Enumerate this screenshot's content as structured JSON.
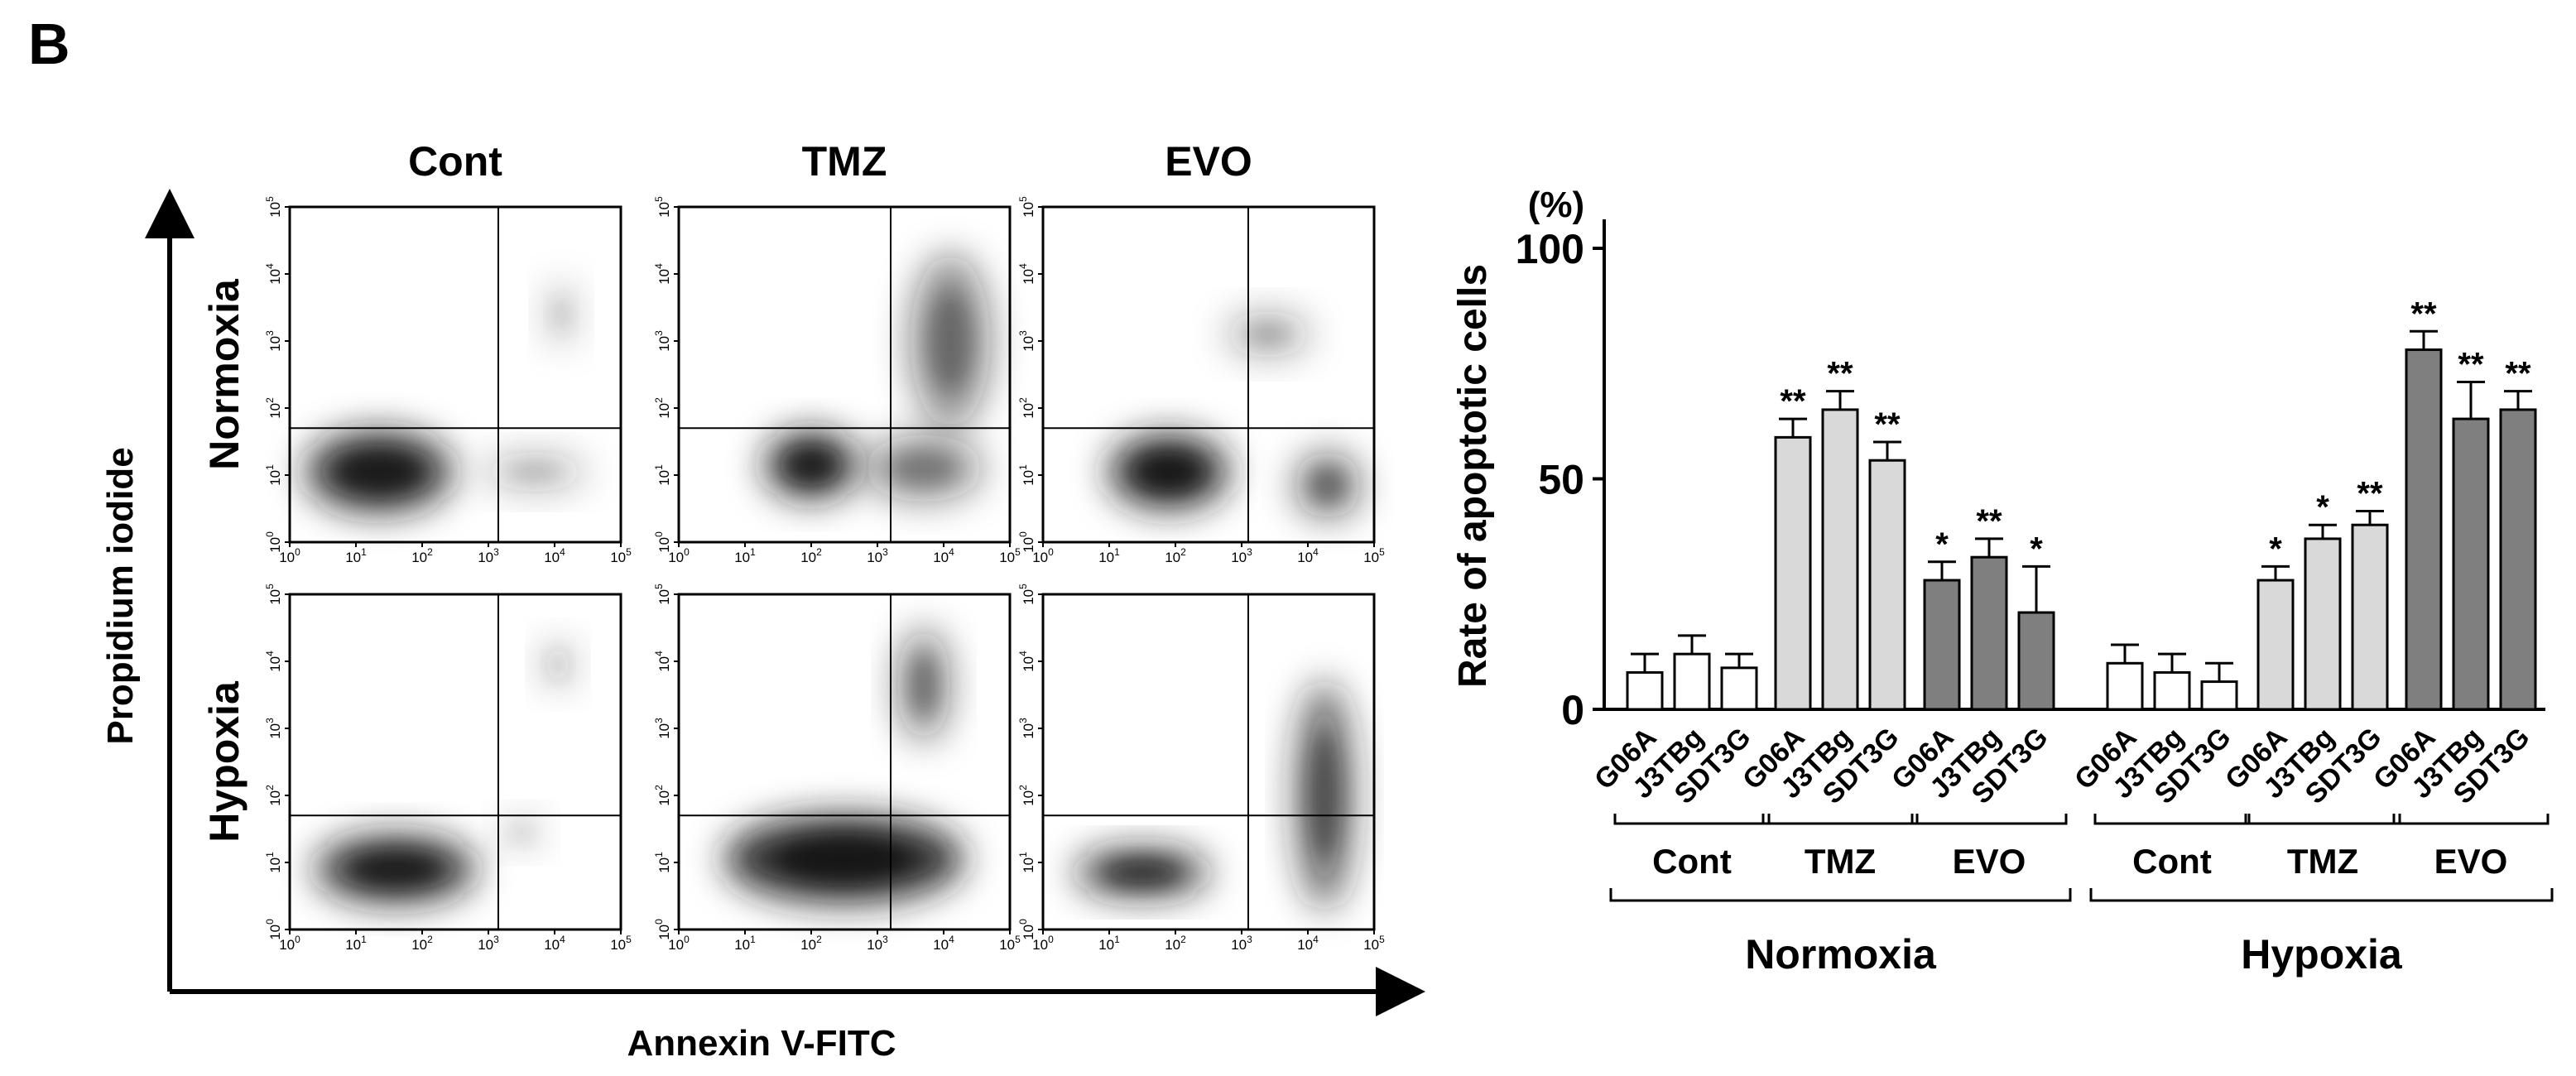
{
  "panel_label": "B",
  "flow": {
    "columns": [
      "Cont",
      "TMZ",
      "EVO"
    ],
    "rows": [
      "Normoxia",
      "Hypoxia"
    ],
    "xlabel": "Annexin V-FITC",
    "ylabel": "Propidium iodide",
    "tick_base": "10",
    "tick_exponents": [
      "0",
      "1",
      "2",
      "3",
      "4",
      "5"
    ]
  },
  "chart_data": {
    "type": "bar",
    "title": "",
    "ylabel": "Rate of  apoptotic cells",
    "yunit": "(%)",
    "ylim": [
      0,
      100
    ],
    "yticks": [
      "0",
      "50",
      "100"
    ],
    "conditions": [
      "Normoxia",
      "Hypoxia"
    ],
    "treatments": [
      "Cont",
      "TMZ",
      "EVO"
    ],
    "cell_lines": [
      "G06A",
      "J3TBg",
      "SDT3G"
    ],
    "colors": {
      "Cont": "#ffffff",
      "TMZ": "#d9d9d9",
      "EVO": "#7f7f7f"
    },
    "bars": [
      {
        "condition": "Normoxia",
        "treatment": "Cont",
        "cell_line": "G06A",
        "value": 8,
        "error": 4,
        "sig": ""
      },
      {
        "condition": "Normoxia",
        "treatment": "Cont",
        "cell_line": "J3TBg",
        "value": 12,
        "error": 4,
        "sig": ""
      },
      {
        "condition": "Normoxia",
        "treatment": "Cont",
        "cell_line": "SDT3G",
        "value": 9,
        "error": 3,
        "sig": ""
      },
      {
        "condition": "Normoxia",
        "treatment": "TMZ",
        "cell_line": "G06A",
        "value": 59,
        "error": 4,
        "sig": "**"
      },
      {
        "condition": "Normoxia",
        "treatment": "TMZ",
        "cell_line": "J3TBg",
        "value": 65,
        "error": 4,
        "sig": "**"
      },
      {
        "condition": "Normoxia",
        "treatment": "TMZ",
        "cell_line": "SDT3G",
        "value": 54,
        "error": 4,
        "sig": "**"
      },
      {
        "condition": "Normoxia",
        "treatment": "EVO",
        "cell_line": "G06A",
        "value": 28,
        "error": 4,
        "sig": "*"
      },
      {
        "condition": "Normoxia",
        "treatment": "EVO",
        "cell_line": "J3TBg",
        "value": 33,
        "error": 4,
        "sig": "**"
      },
      {
        "condition": "Normoxia",
        "treatment": "EVO",
        "cell_line": "SDT3G",
        "value": 21,
        "error": 10,
        "sig": "*"
      },
      {
        "condition": "Hypoxia",
        "treatment": "Cont",
        "cell_line": "G06A",
        "value": 10,
        "error": 4,
        "sig": ""
      },
      {
        "condition": "Hypoxia",
        "treatment": "Cont",
        "cell_line": "J3TBg",
        "value": 8,
        "error": 4,
        "sig": ""
      },
      {
        "condition": "Hypoxia",
        "treatment": "Cont",
        "cell_line": "SDT3G",
        "value": 6,
        "error": 4,
        "sig": ""
      },
      {
        "condition": "Hypoxia",
        "treatment": "TMZ",
        "cell_line": "G06A",
        "value": 28,
        "error": 3,
        "sig": "*"
      },
      {
        "condition": "Hypoxia",
        "treatment": "TMZ",
        "cell_line": "J3TBg",
        "value": 37,
        "error": 3,
        "sig": "*"
      },
      {
        "condition": "Hypoxia",
        "treatment": "TMZ",
        "cell_line": "SDT3G",
        "value": 40,
        "error": 3,
        "sig": "**"
      },
      {
        "condition": "Hypoxia",
        "treatment": "EVO",
        "cell_line": "G06A",
        "value": 78,
        "error": 4,
        "sig": "**"
      },
      {
        "condition": "Hypoxia",
        "treatment": "EVO",
        "cell_line": "J3TBg",
        "value": 63,
        "error": 8,
        "sig": "**"
      },
      {
        "condition": "Hypoxia",
        "treatment": "EVO",
        "cell_line": "SDT3G",
        "value": 65,
        "error": 4,
        "sig": "**"
      }
    ]
  }
}
